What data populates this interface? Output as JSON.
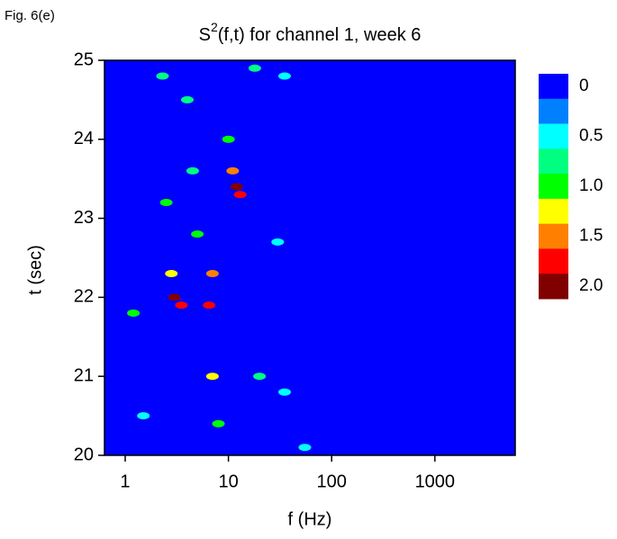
{
  "chart_data": {
    "type": "heatmap",
    "figure_label": "Fig. 6(e)",
    "title_parts": [
      "S",
      "2",
      "(f,t) for channel 1, week 6"
    ],
    "x_label": "f (Hz)",
    "y_label": "t (sec)",
    "xscale": "log",
    "xlim": [
      0.63,
      6000
    ],
    "xticks": [
      1,
      10,
      100,
      1000
    ],
    "ylim": [
      20,
      25
    ],
    "yticks": [
      20,
      21,
      22,
      23,
      24,
      25
    ],
    "background": "#0000ff",
    "colorbar": {
      "levels": [
        0,
        0.25,
        0.5,
        0.75,
        1.0,
        1.25,
        1.5,
        1.75,
        2.0
      ],
      "colors": [
        "#0000ff",
        "#0080ff",
        "#00ffff",
        "#00ff80",
        "#00ff00",
        "#ffff00",
        "#ff8000",
        "#ff0000",
        "#800000"
      ],
      "ticks": [
        0,
        0.5,
        {
          "value": 1,
          "label": "1.0"
        },
        1.5,
        {
          "value": 2,
          "label": "2.0"
        }
      ]
    },
    "points": {
      "x": [
        12,
        3,
        3.5,
        6.5,
        7,
        2.8,
        2.5,
        1.2,
        11,
        13,
        7,
        8,
        2.3,
        4,
        10,
        18,
        30,
        20,
        35,
        4.5,
        1.5,
        55,
        35,
        5
      ],
      "y": [
        23.4,
        22.0,
        21.9,
        21.9,
        22.3,
        22.3,
        23.2,
        21.8,
        23.6,
        23.3,
        21.0,
        20.4,
        24.8,
        24.5,
        24.0,
        24.9,
        22.7,
        21.0,
        20.8,
        23.6,
        20.5,
        20.1,
        24.8,
        22.8
      ],
      "values": [
        2.0,
        2.0,
        1.75,
        1.75,
        1.5,
        1.25,
        1.0,
        1.0,
        1.5,
        1.75,
        1.25,
        1.0,
        0.75,
        0.75,
        1.0,
        0.75,
        0.5,
        0.75,
        0.5,
        0.75,
        0.5,
        0.5,
        0.5,
        1.0
      ]
    }
  }
}
